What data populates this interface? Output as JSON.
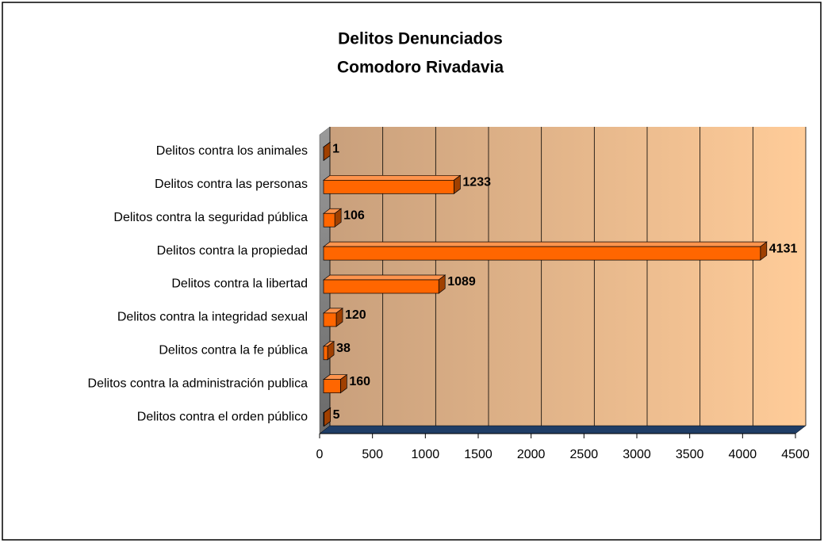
{
  "chart_data": {
    "type": "bar",
    "orientation": "horizontal",
    "title": "Delitos Denunciados",
    "subtitle": "Comodoro Rivadavia",
    "categories": [
      "Delitos contra el orden público",
      "Delitos contra la administración publica",
      "Delitos contra la fe pública",
      "Delitos contra la integridad sexual",
      "Delitos contra la libertad",
      "Delitos contra la propiedad",
      "Delitos contra la seguridad pública",
      "Delitos contra las personas",
      "Delitos contra los animales"
    ],
    "values": [
      5,
      160,
      38,
      120,
      1089,
      4131,
      106,
      1233,
      1
    ],
    "color": "#ff6600",
    "xlim": [
      0,
      4500
    ],
    "xticks": [
      0,
      500,
      1000,
      1500,
      2000,
      2500,
      3000,
      3500,
      4000,
      4500
    ],
    "grid": true
  }
}
